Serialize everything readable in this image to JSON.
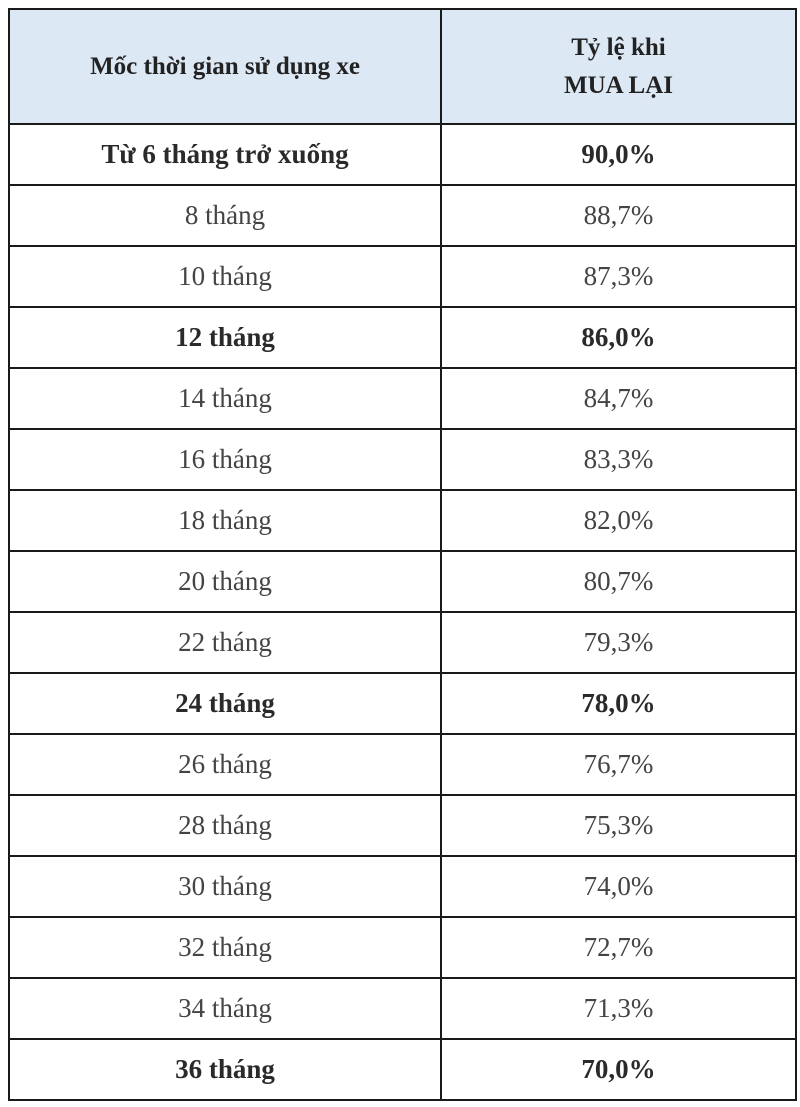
{
  "table": {
    "headers": {
      "col1": "Mốc thời gian sử dụng xe",
      "col2_line1": "Tỷ lệ khi",
      "col2_line2": "MUA LẠI"
    },
    "rows": [
      {
        "period": "Từ 6 tháng trở xuống",
        "rate": "90,0%",
        "bold": true
      },
      {
        "period": "8 tháng",
        "rate": "88,7%",
        "bold": false
      },
      {
        "period": "10 tháng",
        "rate": "87,3%",
        "bold": false
      },
      {
        "period": "12 tháng",
        "rate": "86,0%",
        "bold": true
      },
      {
        "period": "14 tháng",
        "rate": "84,7%",
        "bold": false
      },
      {
        "period": "16 tháng",
        "rate": "83,3%",
        "bold": false
      },
      {
        "period": "18 tháng",
        "rate": "82,0%",
        "bold": false
      },
      {
        "period": "20 tháng",
        "rate": "80,7%",
        "bold": false
      },
      {
        "period": "22 tháng",
        "rate": "79,3%",
        "bold": false
      },
      {
        "period": "24 tháng",
        "rate": "78,0%",
        "bold": true
      },
      {
        "period": "26 tháng",
        "rate": "76,7%",
        "bold": false
      },
      {
        "period": "28 tháng",
        "rate": "75,3%",
        "bold": false
      },
      {
        "period": "30 tháng",
        "rate": "74,0%",
        "bold": false
      },
      {
        "period": "32 tháng",
        "rate": "72,7%",
        "bold": false
      },
      {
        "period": "34 tháng",
        "rate": "71,3%",
        "bold": false
      },
      {
        "period": "36 tháng",
        "rate": "70,0%",
        "bold": true
      }
    ]
  },
  "colors": {
    "header_background": "#dde8f5",
    "border": "#1a1a1a",
    "text": "#444444"
  }
}
